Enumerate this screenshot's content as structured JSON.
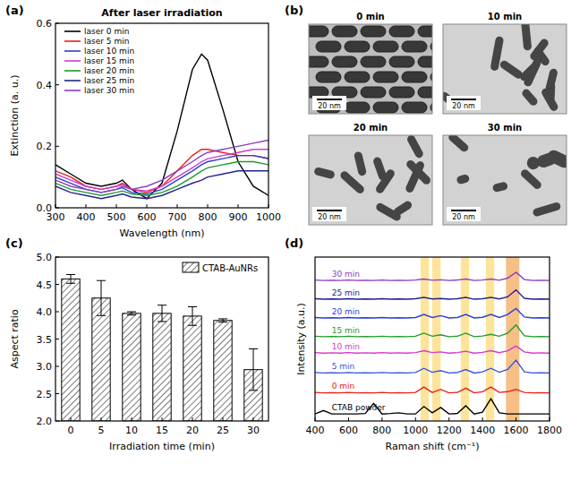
{
  "chart_data": [
    {
      "type": "line",
      "panel": "(a)",
      "title": "After laser irradiation",
      "x_label": "Wavelength (nm)",
      "y_label": "Extinction (a. u.)",
      "x": [
        300,
        350,
        400,
        450,
        500,
        520,
        550,
        600,
        650,
        700,
        750,
        780,
        800,
        850,
        900,
        950,
        1000
      ],
      "series": [
        {
          "name": "laser 0 min",
          "color": "#000000",
          "values": [
            0.14,
            0.11,
            0.08,
            0.07,
            0.08,
            0.09,
            0.06,
            0.03,
            0.08,
            0.25,
            0.45,
            0.5,
            0.48,
            0.32,
            0.15,
            0.07,
            0.04
          ]
        },
        {
          "name": "laser 5 min",
          "color": "#e8201a",
          "values": [
            0.12,
            0.1,
            0.07,
            0.06,
            0.07,
            0.08,
            0.06,
            0.05,
            0.07,
            0.12,
            0.17,
            0.19,
            0.19,
            0.18,
            0.17,
            0.17,
            0.16
          ]
        },
        {
          "name": "laser 10 min",
          "color": "#2b3fd6",
          "values": [
            0.1,
            0.08,
            0.06,
            0.05,
            0.06,
            0.065,
            0.05,
            0.045,
            0.06,
            0.09,
            0.12,
            0.14,
            0.15,
            0.16,
            0.17,
            0.17,
            0.16
          ]
        },
        {
          "name": "laser 15 min",
          "color": "#d03ad0",
          "values": [
            0.11,
            0.09,
            0.07,
            0.06,
            0.07,
            0.075,
            0.06,
            0.055,
            0.07,
            0.1,
            0.13,
            0.15,
            0.16,
            0.17,
            0.18,
            0.19,
            0.19
          ]
        },
        {
          "name": "laser 20 min",
          "color": "#1f9a2a",
          "values": [
            0.08,
            0.06,
            0.05,
            0.04,
            0.05,
            0.055,
            0.045,
            0.04,
            0.05,
            0.07,
            0.1,
            0.12,
            0.13,
            0.14,
            0.15,
            0.15,
            0.14
          ]
        },
        {
          "name": "laser 25 min",
          "color": "#23238f",
          "values": [
            0.07,
            0.05,
            0.04,
            0.03,
            0.04,
            0.045,
            0.035,
            0.03,
            0.04,
            0.06,
            0.08,
            0.09,
            0.1,
            0.11,
            0.12,
            0.12,
            0.12
          ]
        },
        {
          "name": "laser 30 min",
          "color": "#8a3cc4",
          "values": [
            0.09,
            0.07,
            0.06,
            0.05,
            0.06,
            0.07,
            0.06,
            0.07,
            0.09,
            0.12,
            0.15,
            0.17,
            0.18,
            0.19,
            0.2,
            0.21,
            0.22
          ]
        }
      ],
      "xlim": [
        300,
        1000
      ],
      "xticks": [
        300,
        400,
        500,
        600,
        700,
        800,
        900,
        1000
      ],
      "ylim": [
        0,
        0.6
      ],
      "yticks": [
        {
          "value": 0,
          "label": "0.0"
        },
        0.2,
        0.4,
        0.6
      ],
      "legend": "upper left",
      "grid": false
    },
    {
      "type": "bar",
      "panel": "(c)",
      "x_label": "Irradiation time (min)",
      "y_label": "Aspect ratio",
      "categories": [
        "0",
        "5",
        "10",
        "15",
        "20",
        "25",
        "30"
      ],
      "series": [
        {
          "name": "CTAB-AuNRs",
          "color": "#ffffff",
          "values": [
            4.6,
            4.25,
            3.97,
            3.97,
            3.92,
            3.84,
            2.94
          ],
          "errors": [
            0.08,
            0.32,
            0.03,
            0.15,
            0.17,
            0.03,
            0.38
          ]
        }
      ],
      "ylim": [
        2,
        5
      ],
      "yticks": [
        {
          "value": 2,
          "label": "2.0"
        },
        2.5,
        {
          "value": 3,
          "label": "3.0"
        },
        3.5,
        {
          "value": 4,
          "label": "4.0"
        },
        4.5,
        {
          "value": 5,
          "label": "5.0"
        }
      ],
      "legend": "upper right",
      "grid": false
    },
    {
      "type": "line",
      "panel": "(d)",
      "x_label": "Raman shift (cm⁻¹)",
      "y_label": "Intensity (a.u.)",
      "x": [
        400,
        450,
        500,
        550,
        600,
        650,
        700,
        750,
        800,
        850,
        900,
        950,
        1000,
        1050,
        1100,
        1150,
        1200,
        1250,
        1300,
        1350,
        1400,
        1450,
        1500,
        1550,
        1600,
        1650,
        1700,
        1750,
        1800
      ],
      "series": [
        {
          "name": "30 min",
          "color": "#8a3cc4",
          "values": [
            6.02,
            6.0,
            6.01,
            6.0,
            6.02,
            6.0,
            6.01,
            6.0,
            6.02,
            6.0,
            6.01,
            6.0,
            6.02,
            6.06,
            6.01,
            6.03,
            6.0,
            6.02,
            6.06,
            6.0,
            6.02,
            6.06,
            6.01,
            6.1,
            6.35,
            6.04,
            6.0,
            6.01,
            6.0
          ]
        },
        {
          "name": "25 min",
          "color": "#23238f",
          "values": [
            5.22,
            5.2,
            5.21,
            5.2,
            5.22,
            5.2,
            5.21,
            5.2,
            5.22,
            5.2,
            5.21,
            5.2,
            5.22,
            5.28,
            5.21,
            5.23,
            5.2,
            5.22,
            5.28,
            5.2,
            5.22,
            5.28,
            5.21,
            5.3,
            5.6,
            5.24,
            5.2,
            5.21,
            5.2
          ]
        },
        {
          "name": "20 min",
          "color": "#2b3fd6",
          "values": [
            4.42,
            4.4,
            4.41,
            4.4,
            4.42,
            4.4,
            4.41,
            4.4,
            4.42,
            4.4,
            4.41,
            4.4,
            4.42,
            4.55,
            4.42,
            4.5,
            4.4,
            4.42,
            4.55,
            4.4,
            4.43,
            4.55,
            4.42,
            4.55,
            4.8,
            4.44,
            4.4,
            4.41,
            4.4
          ]
        },
        {
          "name": "15 min",
          "color": "#1f9a2a",
          "values": [
            3.62,
            3.6,
            3.61,
            3.6,
            3.62,
            3.6,
            3.61,
            3.6,
            3.62,
            3.6,
            3.61,
            3.6,
            3.62,
            3.75,
            3.62,
            3.68,
            3.6,
            3.62,
            3.75,
            3.6,
            3.63,
            3.7,
            3.62,
            3.75,
            4.1,
            3.64,
            3.6,
            3.61,
            3.6
          ]
        },
        {
          "name": "10 min",
          "color": "#d03ad0",
          "values": [
            2.92,
            2.9,
            2.91,
            2.9,
            2.92,
            2.9,
            2.91,
            2.9,
            2.92,
            2.9,
            2.91,
            2.9,
            2.92,
            3.0,
            2.92,
            2.95,
            2.9,
            2.92,
            2.98,
            2.9,
            2.93,
            3.0,
            2.92,
            3.0,
            3.2,
            2.95,
            2.9,
            2.91,
            2.9
          ]
        },
        {
          "name": "5 min",
          "color": "#3355dd",
          "values": [
            2.07,
            2.05,
            2.06,
            2.05,
            2.07,
            2.05,
            2.06,
            2.05,
            2.07,
            2.05,
            2.06,
            2.05,
            2.07,
            2.25,
            2.08,
            2.15,
            2.05,
            2.07,
            2.2,
            2.05,
            2.1,
            2.25,
            2.08,
            2.2,
            2.6,
            2.1,
            2.05,
            2.06,
            2.05
          ]
        },
        {
          "name": "0 min",
          "color": "#e8201a",
          "values": [
            1.22,
            1.2,
            1.21,
            1.2,
            1.22,
            1.2,
            1.21,
            1.2,
            1.22,
            1.2,
            1.21,
            1.2,
            1.22,
            1.45,
            1.22,
            1.35,
            1.2,
            1.22,
            1.4,
            1.2,
            1.25,
            1.45,
            1.22,
            1.25,
            1.35,
            1.22,
            1.2,
            1.21,
            1.2
          ]
        },
        {
          "name": "CTAB powder",
          "color": "#000000",
          "values": [
            0.3,
            0.45,
            0.3,
            0.3,
            0.3,
            0.3,
            0.32,
            0.75,
            0.3,
            0.32,
            0.35,
            0.3,
            0.3,
            0.62,
            0.35,
            0.58,
            0.3,
            0.32,
            0.65,
            0.3,
            0.38,
            0.95,
            0.35,
            0.3,
            0.3,
            0.3,
            0.3,
            0.3,
            0.3
          ]
        }
      ],
      "bands": [
        {
          "from": 1030,
          "to": 1080,
          "color": "#fde49a"
        },
        {
          "from": 1100,
          "to": 1150,
          "color": "#fde49a"
        },
        {
          "from": 1270,
          "to": 1320,
          "color": "#fde49a"
        },
        {
          "from": 1420,
          "to": 1470,
          "color": "#fde49a"
        },
        {
          "from": 1540,
          "to": 1620,
          "color": "#f6bf86"
        }
      ],
      "xlim": [
        400,
        1800
      ],
      "xticks": [
        400,
        600,
        800,
        1000,
        1200,
        1400,
        1600,
        1800
      ],
      "ylim": [
        0,
        7
      ],
      "tick_labels": "x",
      "grid": false
    }
  ],
  "images": {
    "panel": "(b)",
    "tiles": [
      {
        "title": "0 min",
        "scale_bar": "20 nm"
      },
      {
        "title": "10 min",
        "scale_bar": "20 nm"
      },
      {
        "title": "20 min",
        "scale_bar": "20 nm"
      },
      {
        "title": "30 min",
        "scale_bar": "20 nm"
      }
    ]
  }
}
